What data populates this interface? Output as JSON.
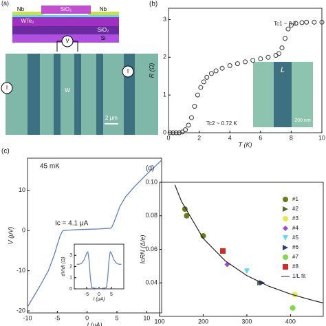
{
  "schematic": {
    "panel_label": "(a)",
    "labels": [
      "Nb",
      "SiO₂",
      "Nb",
      "WTe₂",
      "SiO₂",
      "Si",
      "V",
      "I",
      "I",
      "W",
      "2 μm"
    ]
  },
  "chart_data": [
    {
      "type": "scatter",
      "panel_label": "(b)",
      "x_label": "T (K)",
      "y_label": "R (Ω)",
      "annotations": [
        "Tc1 ~ 8 K",
        "Tc2 ~ 0.72 K"
      ],
      "inset_labels": [
        "L",
        "200 nm"
      ],
      "x": [
        0.1,
        0.3,
        0.5,
        0.7,
        0.9,
        1.1,
        1.3,
        1.5,
        1.7,
        1.9,
        2.1,
        2.3,
        2.5,
        2.8,
        3.1,
        3.5,
        4,
        4.5,
        5,
        5.5,
        6,
        6.5,
        7,
        7.2,
        7.4,
        7.6,
        7.8,
        8,
        8.3,
        8.7,
        9,
        9.5,
        10
      ],
      "values": [
        0,
        0,
        0,
        0,
        0.02,
        0.08,
        0.2,
        0.4,
        0.7,
        1.0,
        1.2,
        1.35,
        1.47,
        1.57,
        1.64,
        1.71,
        1.78,
        1.83,
        1.88,
        1.92,
        1.96,
        2.0,
        2.05,
        2.1,
        2.25,
        2.5,
        2.75,
        2.85,
        2.9,
        2.92,
        2.93,
        2.93,
        2.93
      ],
      "color": "#333333",
      "xlim": [
        0,
        10
      ],
      "ylim": [
        0,
        3.3
      ],
      "xticks": [
        0,
        2,
        4,
        6,
        8,
        10
      ],
      "yticks": [
        0,
        1,
        2,
        3
      ]
    },
    {
      "type": "line",
      "panel_label": "(c)",
      "x_label": "I (μA)",
      "y_label": "V (μV)",
      "annotations": [
        "45 mK",
        "Ic = 4.1 μA"
      ],
      "x": [
        -10,
        -8,
        -6.5,
        -5.5,
        -5,
        -4.5,
        -4.2,
        -4,
        -2,
        0,
        2,
        4,
        4.2,
        4.5,
        5,
        5.5,
        6.5,
        8,
        10,
        12.5
      ],
      "values": [
        -19,
        -14,
        -10,
        -6,
        -3.5,
        -1.2,
        -0.3,
        0,
        0.2,
        0.3,
        0.4,
        0.6,
        1,
        2,
        4,
        6,
        8.5,
        11,
        14,
        17.5
      ],
      "color": "#5a7fc4",
      "xlim": [
        -10,
        12.5
      ],
      "ylim": [
        -20.5,
        18
      ],
      "xticks": [
        -10,
        -5,
        0,
        5,
        10
      ],
      "yticks": [
        -20,
        -10,
        0,
        10
      ],
      "inset": {
        "type": "line",
        "x_label": "I (μA)",
        "y_label": "dV/dI (Ω)",
        "x": [
          -9,
          -8,
          -7,
          -6,
          -5,
          -4.5,
          -4,
          -3.5,
          -3,
          0,
          3,
          3.5,
          4,
          4.5,
          5,
          6,
          7,
          8,
          9
        ],
        "values": [
          2.2,
          2.2,
          2.3,
          2.6,
          3.2,
          3.3,
          2.5,
          1,
          0.1,
          0,
          0.1,
          1,
          2.5,
          3.3,
          3.2,
          2.6,
          2.3,
          2.2,
          2.2
        ],
        "color": "#5a7fc4",
        "xlim": [
          -10,
          10
        ],
        "ylim": [
          0,
          4
        ],
        "xticks": [
          -5,
          0,
          5
        ],
        "yticks": [
          0,
          1,
          2,
          3
        ]
      }
    },
    {
      "type": "scatter",
      "panel_label": "(d)",
      "x_label": "L (nm)",
      "y_label": "IcRN (Δ/e)",
      "xlim": [
        100,
        475
      ],
      "ylim": [
        0.02,
        0.1
      ],
      "xticks": [
        100,
        200,
        300,
        400
      ],
      "yticks": [
        {
          "value": 0.04,
          "label": "0.04"
        },
        {
          "value": 0.06,
          "label": "0.06"
        },
        {
          "value": 0.08,
          "label": "0.08"
        },
        {
          "value": 0.1,
          "label": "0.10"
        }
      ],
      "series": [
        {
          "name": "#1",
          "color": "#6b7a1e",
          "marker": "circle",
          "x": [
            158,
            162,
            200
          ],
          "values": [
            0.084,
            0.08,
            0.068
          ]
        },
        {
          "name": "#2",
          "color": "#556b2f",
          "marker": "triangle-right",
          "x": [
            330
          ],
          "values": [
            0.04
          ]
        },
        {
          "name": "#3",
          "color": "#e8e84a",
          "marker": "circle",
          "x": [
            410
          ],
          "values": [
            0.033
          ]
        },
        {
          "name": "#4",
          "color": "#9b4fd0",
          "marker": "diamond",
          "x": [
            255
          ],
          "values": [
            0.051
          ]
        },
        {
          "name": "#5",
          "color": "#5fd8ef",
          "marker": "triangle-down",
          "x": [
            300
          ],
          "values": [
            0.047
          ]
        },
        {
          "name": "#6",
          "color": "#2a3a8c",
          "marker": "triangle-right",
          "x": [
            335
          ],
          "values": [
            0.04
          ]
        },
        {
          "name": "#7",
          "color": "#7fd94a",
          "marker": "circle",
          "x": [
            405
          ],
          "values": [
            0.025
          ]
        },
        {
          "name": "#8",
          "color": "#d42a2a",
          "marker": "square",
          "x": [
            245
          ],
          "values": [
            0.059
          ]
        },
        {
          "name": "1/L fit",
          "color": "#222222",
          "marker": "line",
          "x": [
            135,
            150,
            200,
            250,
            300,
            350,
            400,
            450,
            475
          ],
          "values": [
            0.0985,
            0.0887,
            0.0665,
            0.0532,
            0.0443,
            0.038,
            0.0333,
            0.0296,
            0.028
          ]
        }
      ]
    }
  ]
}
